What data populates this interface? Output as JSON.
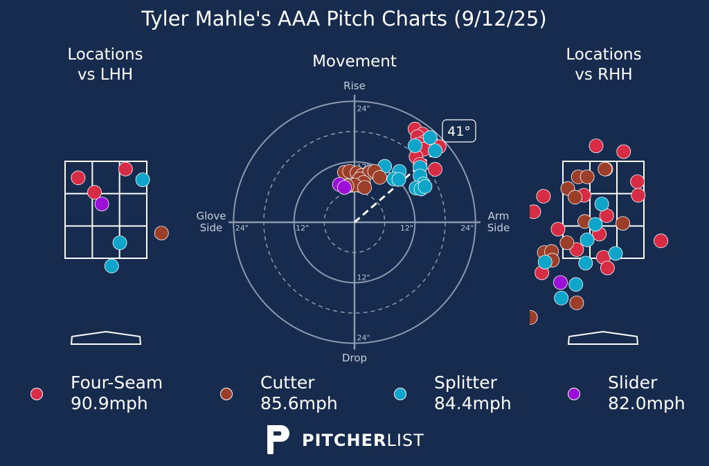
{
  "title": "Tyler Mahle's AAA Pitch Charts (9/12/25)",
  "colors": {
    "background": "#162b4d",
    "Four-Seam": "#d62c45",
    "Cutter": "#9c3f2a",
    "Splitter": "#0fa4c9",
    "Slider": "#9b0fd6",
    "grid": "#8e9ab0"
  },
  "legend": [
    {
      "name": "Four-Seam",
      "speed": "90.9mph"
    },
    {
      "name": "Cutter",
      "speed": "85.6mph"
    },
    {
      "name": "Splitter",
      "speed": "84.4mph"
    },
    {
      "name": "Slider",
      "speed": "82.0mph"
    }
  ],
  "brand": {
    "bold": "PITCHER",
    "light": "LIST",
    "logo": "pitcherlist-p-logo"
  },
  "chart_data": [
    {
      "type": "scatter",
      "title": "Locations\nvs LHH",
      "units": "strike-zone fractions (0-1 wide, 0-1 tall)",
      "points": [
        {
          "pitch": "Four-Seam",
          "x": 0.16,
          "y": 0.83
        },
        {
          "pitch": "Four-Seam",
          "x": 0.74,
          "y": 0.92
        },
        {
          "pitch": "Four-Seam",
          "x": 0.36,
          "y": 0.68
        },
        {
          "pitch": "Splitter",
          "x": 0.95,
          "y": 0.81
        },
        {
          "pitch": "Slider",
          "x": 0.45,
          "y": 0.56
        },
        {
          "pitch": "Cutter",
          "x": 1.18,
          "y": 0.26
        },
        {
          "pitch": "Splitter",
          "x": 0.67,
          "y": 0.16
        },
        {
          "pitch": "Splitter",
          "x": 0.57,
          "y": -0.08
        }
      ]
    },
    {
      "type": "scatter",
      "title": "Movement",
      "labels": {
        "top": "Rise",
        "bottom": "Drop",
        "left": "Glove\nSide",
        "right": "Arm\nSide"
      },
      "rings": [
        "12\"",
        "24\""
      ],
      "arm_angle": "41°",
      "units": "inches of horizontal (arm side +) and vertical (rise +) break",
      "points": [
        {
          "pitch": "Four-Seam",
          "x": 12.0,
          "y": 18.5
        },
        {
          "pitch": "Four-Seam",
          "x": 13.5,
          "y": 17.5
        },
        {
          "pitch": "Four-Seam",
          "x": 12.5,
          "y": 17.0
        },
        {
          "pitch": "Four-Seam",
          "x": 14.0,
          "y": 16.0
        },
        {
          "pitch": "Four-Seam",
          "x": 12.8,
          "y": 15.5
        },
        {
          "pitch": "Four-Seam",
          "x": 15.2,
          "y": 16.0
        },
        {
          "pitch": "Four-Seam",
          "x": 16.8,
          "y": 15.0
        },
        {
          "pitch": "Four-Seam",
          "x": 13.8,
          "y": 14.5
        },
        {
          "pitch": "Four-Seam",
          "x": 12.2,
          "y": 13.0
        },
        {
          "pitch": "Four-Seam",
          "x": 16.0,
          "y": 10.5
        },
        {
          "pitch": "Four-Seam",
          "x": 13.0,
          "y": 11.5
        },
        {
          "pitch": "Splitter",
          "x": 15.0,
          "y": 16.8
        },
        {
          "pitch": "Splitter",
          "x": 12.0,
          "y": 15.2
        },
        {
          "pitch": "Splitter",
          "x": 16.0,
          "y": 14.2
        },
        {
          "pitch": "Splitter",
          "x": 13.0,
          "y": 10.9
        },
        {
          "pitch": "Splitter",
          "x": 13.0,
          "y": 9.2
        },
        {
          "pitch": "Splitter",
          "x": 13.7,
          "y": 7.6
        },
        {
          "pitch": "Splitter",
          "x": 12.2,
          "y": 6.8
        },
        {
          "pitch": "Splitter",
          "x": 13.2,
          "y": 6.6
        },
        {
          "pitch": "Splitter",
          "x": 14.0,
          "y": 7.1
        },
        {
          "pitch": "Splitter",
          "x": 6.0,
          "y": 11.1
        },
        {
          "pitch": "Splitter",
          "x": 8.9,
          "y": 10.1
        },
        {
          "pitch": "Splitter",
          "x": 7.8,
          "y": 8.6
        },
        {
          "pitch": "Splitter",
          "x": 8.8,
          "y": 8.5
        },
        {
          "pitch": "Cutter",
          "x": -2.0,
          "y": 9.9
        },
        {
          "pitch": "Cutter",
          "x": -1.0,
          "y": 10.1
        },
        {
          "pitch": "Cutter",
          "x": 0.5,
          "y": 9.8
        },
        {
          "pitch": "Cutter",
          "x": 1.5,
          "y": 9.3
        },
        {
          "pitch": "Cutter",
          "x": 3.0,
          "y": 9.9
        },
        {
          "pitch": "Cutter",
          "x": 4.0,
          "y": 10.1
        },
        {
          "pitch": "Cutter",
          "x": 5.0,
          "y": 8.9
        },
        {
          "pitch": "Cutter",
          "x": 1.0,
          "y": 8.6
        },
        {
          "pitch": "Cutter",
          "x": 1.8,
          "y": 7.9
        },
        {
          "pitch": "Cutter",
          "x": 0.0,
          "y": 7.4
        },
        {
          "pitch": "Cutter",
          "x": 2.0,
          "y": 6.9
        },
        {
          "pitch": "Cutter",
          "x": -1.5,
          "y": 7.2
        },
        {
          "pitch": "Slider",
          "x": -3.0,
          "y": 7.5
        },
        {
          "pitch": "Slider",
          "x": -2.0,
          "y": 6.9
        }
      ]
    },
    {
      "type": "scatter",
      "title": "Locations\nvs RHH",
      "units": "strike-zone fractions (0-1 wide, 0-1 tall)",
      "points": [
        {
          "pitch": "Four-Seam",
          "x": 0.41,
          "y": 1.16
        },
        {
          "pitch": "Four-Seam",
          "x": 0.75,
          "y": 1.1
        },
        {
          "pitch": "Four-Seam",
          "x": 0.53,
          "y": 0.92
        },
        {
          "pitch": "Four-Seam",
          "x": 0.92,
          "y": 0.79
        },
        {
          "pitch": "Four-Seam",
          "x": 0.93,
          "y": 0.65
        },
        {
          "pitch": "Four-Seam",
          "x": 0.26,
          "y": 0.65
        },
        {
          "pitch": "Four-Seam",
          "x": -0.24,
          "y": 0.64
        },
        {
          "pitch": "Four-Seam",
          "x": -0.36,
          "y": 0.48
        },
        {
          "pitch": "Four-Seam",
          "x": 0.54,
          "y": 0.44
        },
        {
          "pitch": "Four-Seam",
          "x": -0.06,
          "y": 0.3
        },
        {
          "pitch": "Four-Seam",
          "x": 0.45,
          "y": 0.25
        },
        {
          "pitch": "Four-Seam",
          "x": 1.21,
          "y": 0.18
        },
        {
          "pitch": "Four-Seam",
          "x": 0.17,
          "y": 0.09
        },
        {
          "pitch": "Four-Seam",
          "x": 0.5,
          "y": 0.01
        },
        {
          "pitch": "Four-Seam",
          "x": -0.26,
          "y": -0.15
        },
        {
          "pitch": "Four-Seam",
          "x": 0.55,
          "y": -0.1
        },
        {
          "pitch": "Cutter",
          "x": 0.19,
          "y": 0.84
        },
        {
          "pitch": "Cutter",
          "x": 0.3,
          "y": 0.84
        },
        {
          "pitch": "Cutter",
          "x": 0.52,
          "y": 0.92
        },
        {
          "pitch": "Cutter",
          "x": 0.06,
          "y": 0.72
        },
        {
          "pitch": "Cutter",
          "x": 0.15,
          "y": 0.63
        },
        {
          "pitch": "Cutter",
          "x": 0.27,
          "y": 0.38
        },
        {
          "pitch": "Cutter",
          "x": 0.74,
          "y": 0.36
        },
        {
          "pitch": "Cutter",
          "x": 0.05,
          "y": 0.16
        },
        {
          "pitch": "Cutter",
          "x": -0.23,
          "y": 0.06
        },
        {
          "pitch": "Cutter",
          "x": -0.14,
          "y": 0.07
        },
        {
          "pitch": "Cutter",
          "x": -0.13,
          "y": -0.02
        },
        {
          "pitch": "Cutter",
          "x": 0.17,
          "y": -0.46
        },
        {
          "pitch": "Cutter",
          "x": -0.4,
          "y": -0.61
        },
        {
          "pitch": "Splitter",
          "x": 0.48,
          "y": 0.56
        },
        {
          "pitch": "Splitter",
          "x": 0.4,
          "y": 0.35
        },
        {
          "pitch": "Splitter",
          "x": 0.3,
          "y": 0.19
        },
        {
          "pitch": "Splitter",
          "x": 0.65,
          "y": 0.05
        },
        {
          "pitch": "Splitter",
          "x": 0.28,
          "y": -0.05
        },
        {
          "pitch": "Splitter",
          "x": -0.22,
          "y": -0.04
        },
        {
          "pitch": "Splitter",
          "x": 0.16,
          "y": -0.27
        },
        {
          "pitch": "Splitter",
          "x": -0.02,
          "y": -0.41
        },
        {
          "pitch": "Slider",
          "x": -0.03,
          "y": -0.25
        }
      ]
    }
  ]
}
